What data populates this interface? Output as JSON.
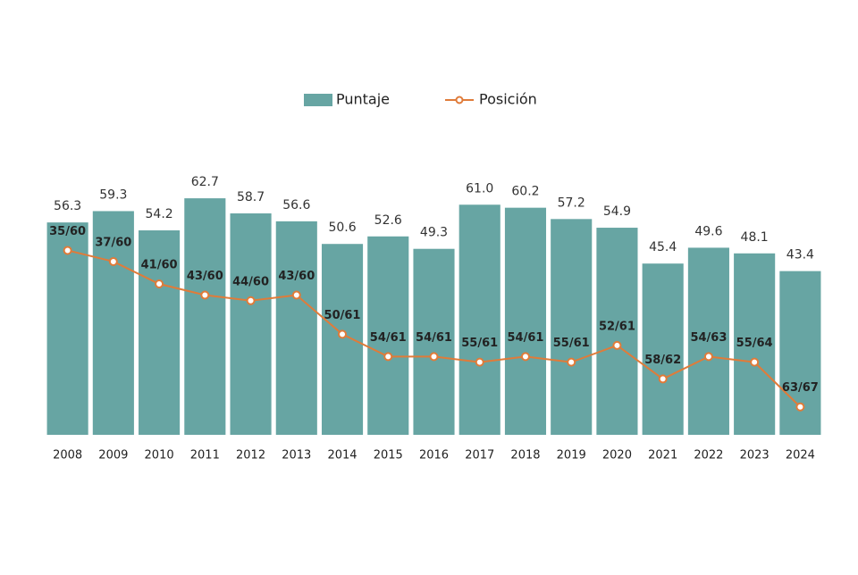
{
  "chart_data": {
    "type": "bar-line",
    "categories": [
      "2008",
      "2009",
      "2010",
      "2011",
      "2012",
      "2013",
      "2014",
      "2015",
      "2016",
      "2017",
      "2018",
      "2019",
      "2020",
      "2021",
      "2022",
      "2023",
      "2024"
    ],
    "series": [
      {
        "name": "Puntaje",
        "type": "bar",
        "color": "#67a5a3",
        "values": [
          56.3,
          59.3,
          54.2,
          62.7,
          58.7,
          56.6,
          50.6,
          52.6,
          49.3,
          61.0,
          60.2,
          57.2,
          54.9,
          45.4,
          49.6,
          48.1,
          43.4
        ],
        "value_labels": [
          "56.3",
          "59.3",
          "54.2",
          "62.7",
          "58.7",
          "56.6",
          "50.6",
          "52.6",
          "49.3",
          "61.0",
          "60.2",
          "57.2",
          "54.9",
          "45.4",
          "49.6",
          "48.1",
          "43.4"
        ]
      },
      {
        "name": "Posición",
        "type": "line",
        "axis": "y2",
        "color": "#e07b39",
        "values": [
          35,
          37,
          41,
          43,
          44,
          43,
          50,
          54,
          54,
          55,
          54,
          55,
          52,
          58,
          54,
          55,
          63
        ],
        "value_labels": [
          "35/60",
          "37/60",
          "41/60",
          "43/60",
          "44/60",
          "43/60",
          "50/61",
          "54/61",
          "54/61",
          "55/61",
          "54/61",
          "55/61",
          "52/61",
          "58/62",
          "54/63",
          "55/64",
          "63/67"
        ]
      }
    ],
    "ylim": [
      0,
      80
    ],
    "y2lim": [
      68,
      14
    ],
    "legend": "top"
  }
}
